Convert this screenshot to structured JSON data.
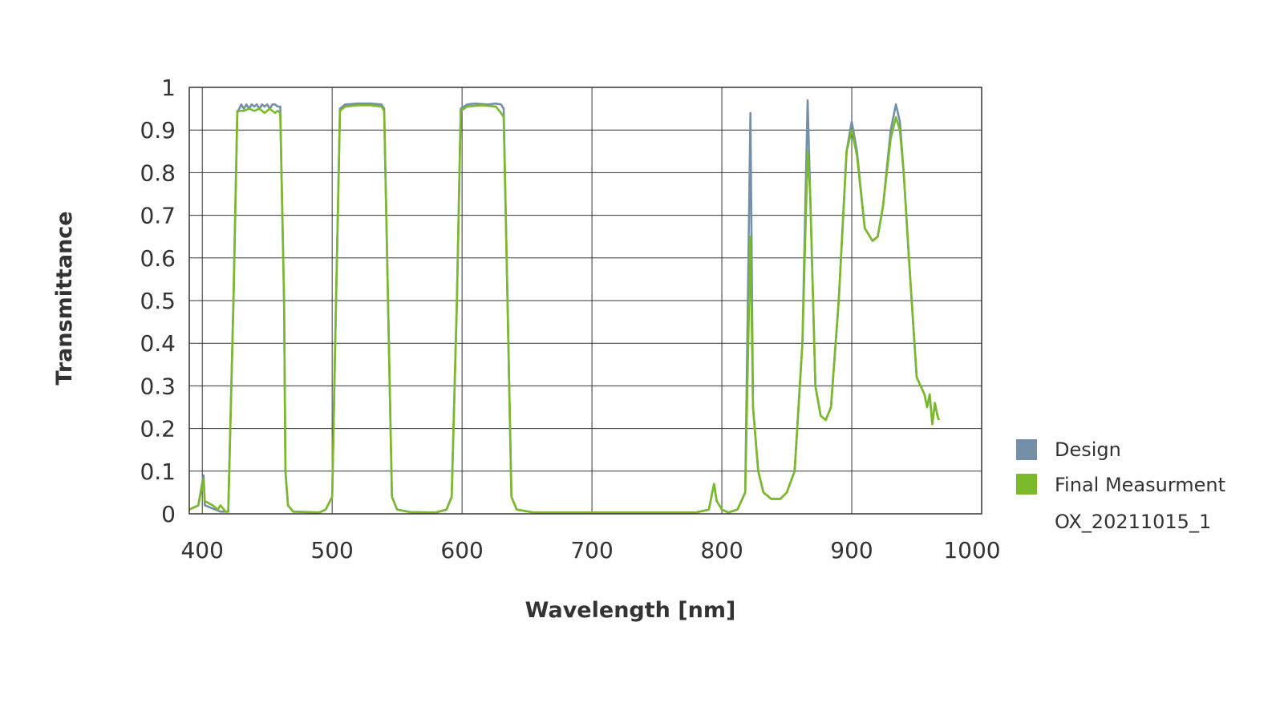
{
  "chart_data": {
    "type": "line",
    "title": "",
    "xlabel": "Wavelength [nm]",
    "ylabel": "Transmittance",
    "xlim": [
      390,
      1000
    ],
    "ylim": [
      0,
      1
    ],
    "x_ticks": [
      "400",
      "500",
      "600",
      "700",
      "800",
      "900",
      "1000"
    ],
    "x_tick_values": [
      400,
      500,
      600,
      700,
      800,
      900,
      1000
    ],
    "y_ticks": [
      "0",
      "0.1",
      "0.2",
      "0.3",
      "0.4",
      "0.5",
      "0.6",
      "0.7",
      "0.8",
      "0.9",
      "1"
    ],
    "y_tick_values": [
      0,
      0.1,
      0.2,
      0.3,
      0.4,
      0.5,
      0.6,
      0.7,
      0.8,
      0.9,
      1
    ],
    "grid": true,
    "legend_position": "right",
    "legend_note": "OX_20211015_1",
    "series": [
      {
        "name": "Design",
        "color": "#7390a8",
        "points": [
          [
            390,
            0.01
          ],
          [
            397,
            0.02
          ],
          [
            401,
            0.09
          ],
          [
            402,
            0.02
          ],
          [
            410,
            0.01
          ],
          [
            414,
            0.005
          ],
          [
            420,
            0.005
          ],
          [
            424,
            0.5
          ],
          [
            427,
            0.94
          ],
          [
            430,
            0.96
          ],
          [
            432,
            0.95
          ],
          [
            434,
            0.96
          ],
          [
            436,
            0.95
          ],
          [
            438,
            0.96
          ],
          [
            440,
            0.955
          ],
          [
            442,
            0.96
          ],
          [
            444,
            0.95
          ],
          [
            446,
            0.96
          ],
          [
            448,
            0.955
          ],
          [
            450,
            0.96
          ],
          [
            452,
            0.95
          ],
          [
            454,
            0.96
          ],
          [
            456,
            0.96
          ],
          [
            458,
            0.955
          ],
          [
            460,
            0.955
          ],
          [
            463,
            0.5
          ],
          [
            464,
            0.1
          ],
          [
            466,
            0.02
          ],
          [
            470,
            0.005
          ],
          [
            490,
            0.003
          ],
          [
            495,
            0.01
          ],
          [
            500,
            0.04
          ],
          [
            503,
            0.5
          ],
          [
            506,
            0.95
          ],
          [
            510,
            0.96
          ],
          [
            520,
            0.962
          ],
          [
            530,
            0.962
          ],
          [
            538,
            0.96
          ],
          [
            540,
            0.95
          ],
          [
            543,
            0.5
          ],
          [
            546,
            0.04
          ],
          [
            550,
            0.01
          ],
          [
            560,
            0.004
          ],
          [
            580,
            0.003
          ],
          [
            588,
            0.01
          ],
          [
            592,
            0.04
          ],
          [
            596,
            0.5
          ],
          [
            599,
            0.95
          ],
          [
            604,
            0.96
          ],
          [
            610,
            0.962
          ],
          [
            620,
            0.96
          ],
          [
            626,
            0.962
          ],
          [
            630,
            0.96
          ],
          [
            632,
            0.95
          ],
          [
            635,
            0.5
          ],
          [
            638,
            0.04
          ],
          [
            642,
            0.01
          ],
          [
            655,
            0.003
          ],
          [
            780,
            0.003
          ],
          [
            790,
            0.01
          ],
          [
            794,
            0.07
          ],
          [
            796,
            0.03
          ],
          [
            800,
            0.01
          ],
          [
            805,
            0.003
          ],
          [
            812,
            0.01
          ],
          [
            818,
            0.05
          ],
          [
            822,
            0.94
          ],
          [
            824,
            0.25
          ],
          [
            828,
            0.1
          ],
          [
            832,
            0.05
          ],
          [
            838,
            0.035
          ],
          [
            845,
            0.035
          ],
          [
            850,
            0.05
          ],
          [
            856,
            0.1
          ],
          [
            862,
            0.4
          ],
          [
            866,
            0.97
          ],
          [
            868,
            0.75
          ],
          [
            872,
            0.3
          ],
          [
            876,
            0.23
          ],
          [
            880,
            0.22
          ],
          [
            884,
            0.25
          ],
          [
            890,
            0.5
          ],
          [
            896,
            0.85
          ],
          [
            900,
            0.92
          ],
          [
            904,
            0.85
          ],
          [
            910,
            0.67
          ],
          [
            916,
            0.64
          ],
          [
            920,
            0.65
          ],
          [
            924,
            0.72
          ],
          [
            930,
            0.9
          ],
          [
            934,
            0.96
          ],
          [
            937,
            0.92
          ],
          [
            940,
            0.8
          ],
          [
            944,
            0.6
          ],
          [
            950,
            0.32
          ],
          [
            956,
            0.28
          ],
          [
            958,
            0.25
          ],
          [
            960,
            0.28
          ],
          [
            962,
            0.21
          ],
          [
            964,
            0.26
          ],
          [
            966,
            0.23
          ],
          [
            967,
            0.22
          ]
        ]
      },
      {
        "name": "Final Measurment",
        "color": "#7ab929",
        "points": [
          [
            390,
            0.01
          ],
          [
            397,
            0.02
          ],
          [
            401,
            0.08
          ],
          [
            402,
            0.03
          ],
          [
            408,
            0.02
          ],
          [
            412,
            0.01
          ],
          [
            414,
            0.02
          ],
          [
            418,
            0.005
          ],
          [
            420,
            0.005
          ],
          [
            424,
            0.5
          ],
          [
            427,
            0.945
          ],
          [
            432,
            0.945
          ],
          [
            436,
            0.95
          ],
          [
            440,
            0.945
          ],
          [
            444,
            0.95
          ],
          [
            448,
            0.94
          ],
          [
            452,
            0.95
          ],
          [
            456,
            0.94
          ],
          [
            458,
            0.945
          ],
          [
            460,
            0.94
          ],
          [
            463,
            0.5
          ],
          [
            464,
            0.1
          ],
          [
            466,
            0.02
          ],
          [
            470,
            0.005
          ],
          [
            490,
            0.003
          ],
          [
            495,
            0.01
          ],
          [
            500,
            0.04
          ],
          [
            503,
            0.5
          ],
          [
            506,
            0.945
          ],
          [
            510,
            0.955
          ],
          [
            520,
            0.958
          ],
          [
            530,
            0.958
          ],
          [
            538,
            0.955
          ],
          [
            540,
            0.945
          ],
          [
            543,
            0.5
          ],
          [
            546,
            0.04
          ],
          [
            550,
            0.01
          ],
          [
            560,
            0.004
          ],
          [
            580,
            0.003
          ],
          [
            588,
            0.01
          ],
          [
            592,
            0.04
          ],
          [
            596,
            0.5
          ],
          [
            599,
            0.945
          ],
          [
            604,
            0.955
          ],
          [
            615,
            0.958
          ],
          [
            626,
            0.955
          ],
          [
            630,
            0.94
          ],
          [
            632,
            0.93
          ],
          [
            635,
            0.5
          ],
          [
            638,
            0.04
          ],
          [
            642,
            0.01
          ],
          [
            655,
            0.003
          ],
          [
            780,
            0.003
          ],
          [
            790,
            0.01
          ],
          [
            794,
            0.07
          ],
          [
            796,
            0.03
          ],
          [
            800,
            0.01
          ],
          [
            805,
            0.003
          ],
          [
            812,
            0.01
          ],
          [
            818,
            0.05
          ],
          [
            822,
            0.65
          ],
          [
            824,
            0.25
          ],
          [
            828,
            0.1
          ],
          [
            832,
            0.05
          ],
          [
            838,
            0.035
          ],
          [
            845,
            0.035
          ],
          [
            850,
            0.05
          ],
          [
            856,
            0.1
          ],
          [
            862,
            0.4
          ],
          [
            866,
            0.85
          ],
          [
            868,
            0.75
          ],
          [
            872,
            0.3
          ],
          [
            876,
            0.23
          ],
          [
            880,
            0.22
          ],
          [
            884,
            0.25
          ],
          [
            890,
            0.5
          ],
          [
            896,
            0.85
          ],
          [
            900,
            0.9
          ],
          [
            904,
            0.84
          ],
          [
            910,
            0.67
          ],
          [
            916,
            0.64
          ],
          [
            920,
            0.65
          ],
          [
            924,
            0.72
          ],
          [
            930,
            0.88
          ],
          [
            934,
            0.93
          ],
          [
            937,
            0.9
          ],
          [
            940,
            0.8
          ],
          [
            944,
            0.6
          ],
          [
            950,
            0.32
          ],
          [
            956,
            0.28
          ],
          [
            958,
            0.25
          ],
          [
            960,
            0.28
          ],
          [
            962,
            0.21
          ],
          [
            964,
            0.26
          ],
          [
            966,
            0.23
          ],
          [
            967,
            0.22
          ]
        ]
      }
    ]
  }
}
